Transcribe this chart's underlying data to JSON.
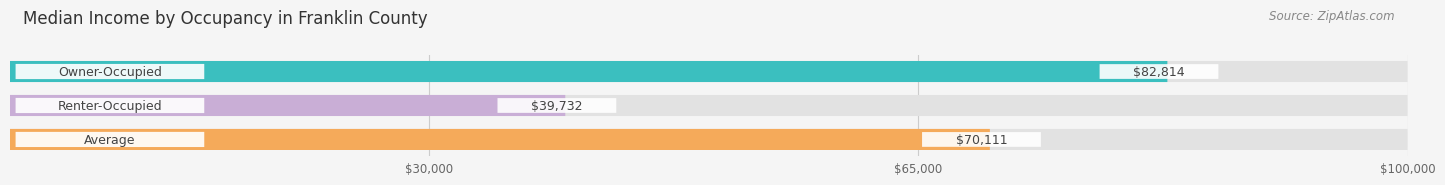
{
  "title": "Median Income by Occupancy in Franklin County",
  "source": "Source: ZipAtlas.com",
  "categories": [
    "Owner-Occupied",
    "Renter-Occupied",
    "Average"
  ],
  "values": [
    82814,
    39732,
    70111
  ],
  "bar_colors": [
    "#3bbfbf",
    "#c9aed6",
    "#f5aa5a"
  ],
  "value_labels": [
    "$82,814",
    "$39,732",
    "$70,111"
  ],
  "xlim": [
    0,
    100000
  ],
  "xticks": [
    30000,
    65000,
    100000
  ],
  "xtick_labels": [
    "$30,000",
    "$65,000",
    "$100,000"
  ],
  "title_fontsize": 12,
  "source_fontsize": 8.5,
  "bar_label_fontsize": 9,
  "value_fontsize": 9,
  "tick_fontsize": 8.5,
  "background_color": "#f5f5f5",
  "bar_bg_color": "#e2e2e2",
  "bar_height": 0.62,
  "bar_gap": 0.38
}
